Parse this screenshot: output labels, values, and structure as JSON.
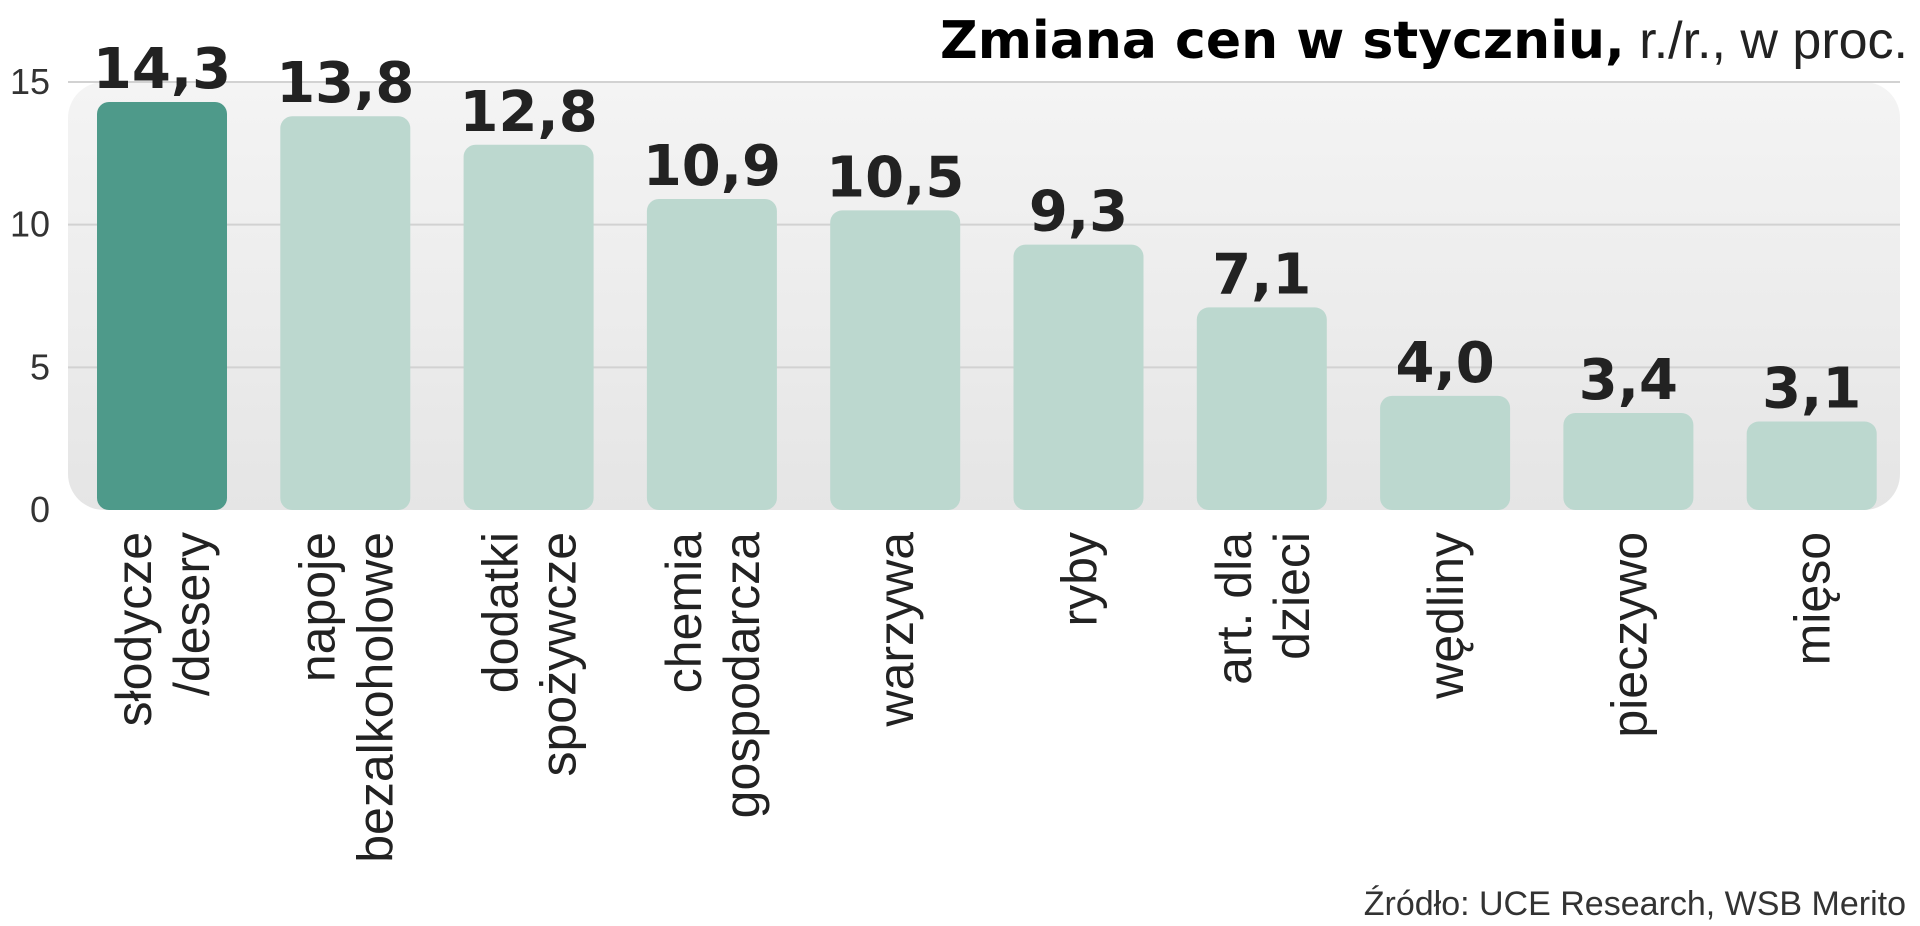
{
  "chart_data": {
    "type": "bar",
    "title": "Zmiana cen w styczniu,",
    "subtitle": "r./r., w proc.",
    "source": "Źródło: UCE Research, WSB Merito",
    "categories": [
      [
        "słodycze",
        "/desery"
      ],
      [
        "napoje",
        "bezalkoholowe"
      ],
      [
        "dodatki",
        "spożywcze"
      ],
      [
        "chemia",
        "gospodarcza"
      ],
      [
        "warzywa"
      ],
      [
        "ryby"
      ],
      [
        "art. dla",
        "dzieci"
      ],
      [
        "wędliny"
      ],
      [
        "pieczywo"
      ],
      [
        "mięso"
      ]
    ],
    "values": [
      14.3,
      13.8,
      12.8,
      10.9,
      10.5,
      9.3,
      7.1,
      4.0,
      3.4,
      3.1
    ],
    "value_labels": [
      "14,3",
      "13,8",
      "12,8",
      "10,9",
      "10,5",
      "9,3",
      "7,1",
      "4,0",
      "3,4",
      "3,1"
    ],
    "ylim": [
      0,
      15
    ],
    "yticks": [
      0,
      5,
      10,
      15
    ],
    "grid": true,
    "highlight_index": 0,
    "colors": {
      "highlight": "#4e9a8a",
      "bar": "#bcd8cf",
      "plot_bg_top": "#f4f4f4",
      "plot_bg_bottom": "#e5e5e5",
      "grid": "#d2d2d2"
    }
  }
}
